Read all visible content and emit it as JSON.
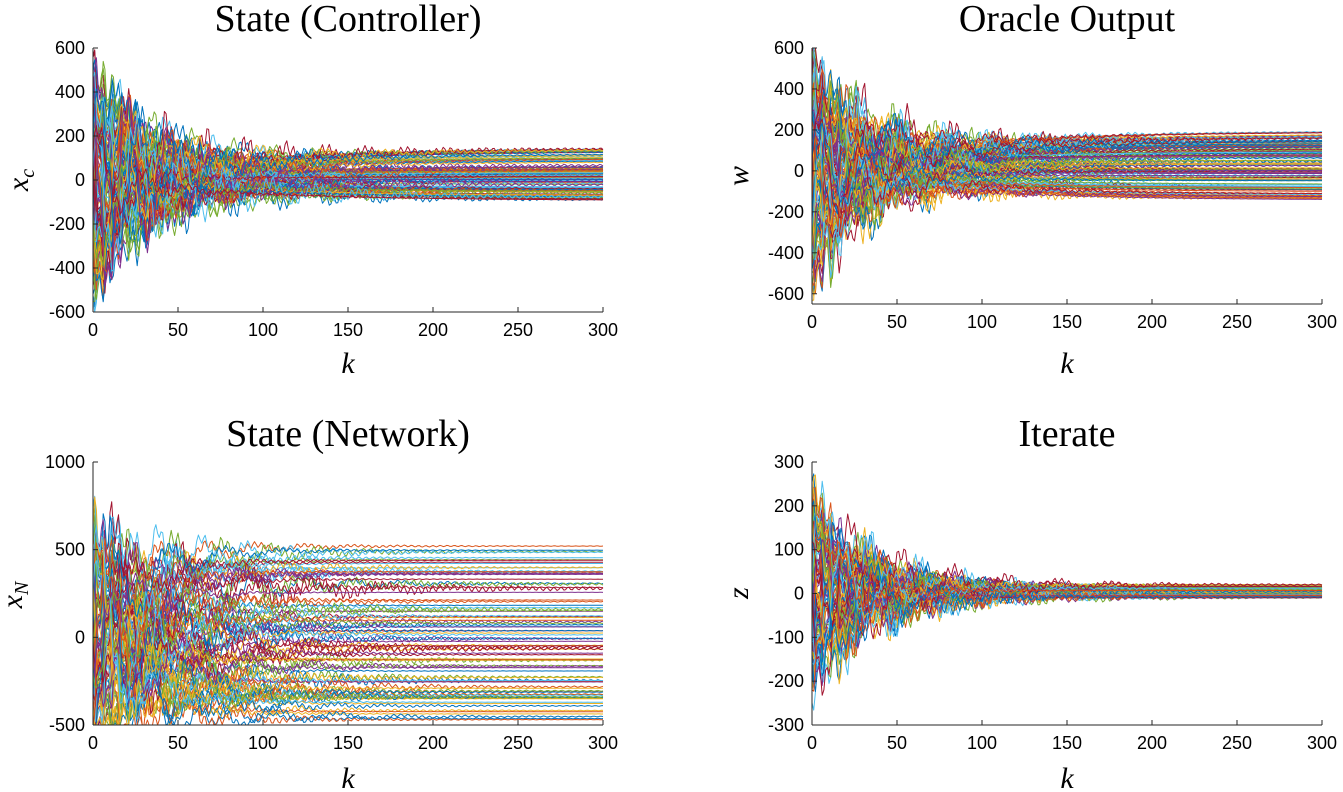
{
  "figure": {
    "colors": [
      "#0072BD",
      "#D95319",
      "#EDB120",
      "#7E2F8E",
      "#77AC30",
      "#4DBEEE",
      "#A2142F"
    ]
  },
  "chart_data": [
    {
      "type": "line",
      "title": "State (Controller)",
      "xlabel": "k",
      "ylabel": "x",
      "ylabel_sub": "c",
      "xlim": [
        0,
        300
      ],
      "ylim": [
        -600,
        600
      ],
      "xticks": [
        0,
        50,
        100,
        150,
        200,
        250,
        300
      ],
      "yticks": [
        -600,
        -400,
        -200,
        0,
        200,
        400,
        600
      ],
      "grid": false,
      "legend": "none",
      "series_count": 120,
      "settle_range": [
        -95,
        150
      ],
      "initial_range": [
        -580,
        480
      ],
      "settle_step": 90
    },
    {
      "type": "line",
      "title": "Oracle Output",
      "xlabel": "k",
      "ylabel": "w",
      "ylabel_sub": "",
      "xlim": [
        0,
        300
      ],
      "ylim": [
        -650,
        600
      ],
      "xticks": [
        0,
        50,
        100,
        150,
        200,
        250,
        300
      ],
      "yticks": [
        -600,
        -400,
        -200,
        0,
        200,
        400,
        600
      ],
      "grid": false,
      "legend": "none",
      "series_count": 120,
      "settle_range": [
        -150,
        195
      ],
      "initial_range": [
        -640,
        600
      ],
      "settle_step": 80
    },
    {
      "type": "line",
      "title": "State (Network)",
      "xlabel": "k",
      "ylabel": "x",
      "ylabel_sub": "N",
      "xlim": [
        0,
        300
      ],
      "ylim": [
        -500,
        1000
      ],
      "xticks": [
        0,
        50,
        100,
        150,
        200,
        250,
        300
      ],
      "yticks": [
        -500,
        0,
        500,
        1000
      ],
      "grid": false,
      "legend": "none",
      "series_count": 90,
      "settle_range": [
        -470,
        550
      ],
      "initial_range": [
        -380,
        790
      ],
      "settle_step": 180
    },
    {
      "type": "line",
      "title": "Iterate",
      "xlabel": "k",
      "ylabel": "z",
      "ylabel_sub": "",
      "xlim": [
        0,
        300
      ],
      "ylim": [
        -300,
        300
      ],
      "xticks": [
        0,
        50,
        100,
        150,
        200,
        250,
        300
      ],
      "yticks": [
        -300,
        -200,
        -100,
        0,
        100,
        200,
        300
      ],
      "grid": false,
      "legend": "none",
      "series_count": 100,
      "settle_range": [
        -10,
        20
      ],
      "initial_range": [
        -215,
        260
      ],
      "settle_step": 60
    }
  ]
}
